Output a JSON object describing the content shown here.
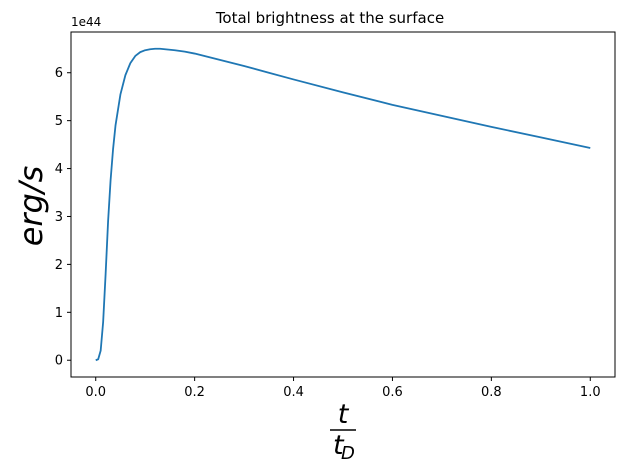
{
  "chart_data": {
    "type": "line",
    "title": "Total brightness at the surface",
    "xlabel": {
      "numerator": "t",
      "denominator_base": "t",
      "denominator_sub": "D"
    },
    "ylabel": "erg/s",
    "y_offset_text": "1e44",
    "xlim": [
      -0.05,
      1.05
    ],
    "ylim": [
      -0.35,
      6.85
    ],
    "x_ticks": [
      0.0,
      0.2,
      0.4,
      0.6,
      0.8,
      1.0
    ],
    "x_tick_labels": [
      "0.0",
      "0.2",
      "0.4",
      "0.6",
      "0.8",
      "1.0"
    ],
    "y_ticks": [
      0,
      1,
      2,
      3,
      4,
      5,
      6
    ],
    "y_tick_labels": [
      "0",
      "1",
      "2",
      "3",
      "4",
      "5",
      "6"
    ],
    "grid": false,
    "series": [
      {
        "color": "#1f77b4",
        "x": [
          0.0,
          0.005,
          0.01,
          0.015,
          0.02,
          0.025,
          0.03,
          0.035,
          0.04,
          0.05,
          0.06,
          0.07,
          0.08,
          0.09,
          0.1,
          0.11,
          0.12,
          0.13,
          0.14,
          0.16,
          0.18,
          0.2,
          0.25,
          0.3,
          0.35,
          0.4,
          0.5,
          0.6,
          0.7,
          0.8,
          0.9,
          1.0
        ],
        "y": [
          0.0,
          0.02,
          0.2,
          0.8,
          1.8,
          2.9,
          3.75,
          4.4,
          4.9,
          5.55,
          5.95,
          6.2,
          6.35,
          6.43,
          6.47,
          6.49,
          6.5,
          6.5,
          6.49,
          6.47,
          6.44,
          6.4,
          6.27,
          6.14,
          6.0,
          5.86,
          5.59,
          5.33,
          5.1,
          4.87,
          4.65,
          4.43
        ]
      }
    ]
  }
}
